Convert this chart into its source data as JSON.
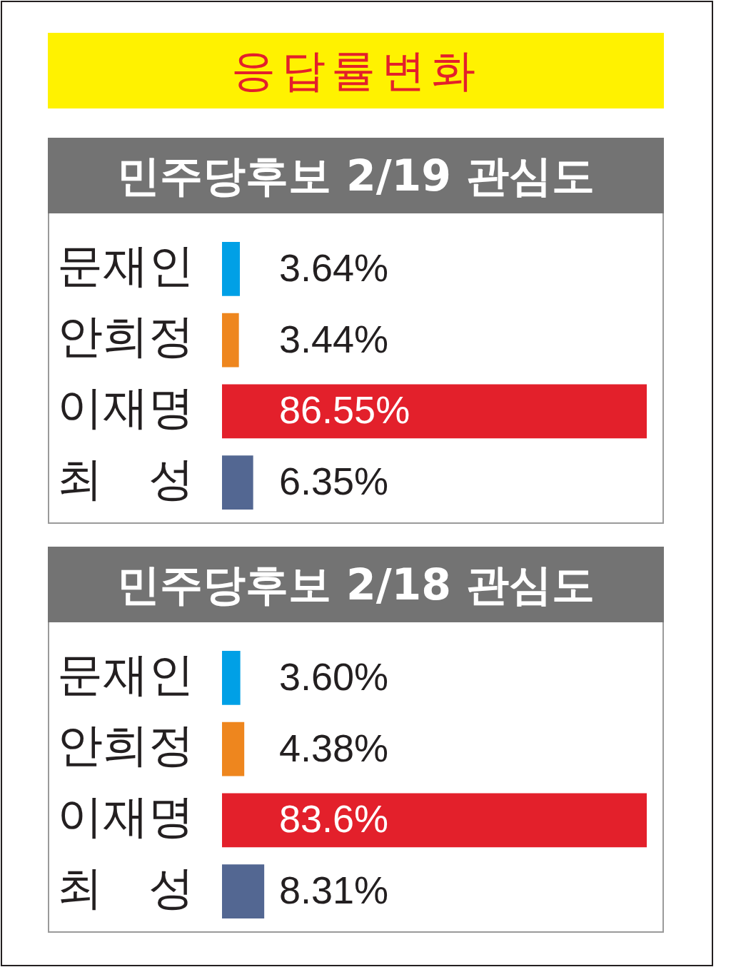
{
  "chart_data": [
    {
      "type": "other",
      "title": "응답률변화"
    },
    {
      "type": "bar",
      "orientation": "horizontal",
      "title": "민주당후보 2/19 관심도",
      "categories": [
        "문재인",
        "안희정",
        "이재명",
        "최　성"
      ],
      "values": [
        3.64,
        3.44,
        86.55,
        6.35
      ],
      "colors": [
        "#00a0e6",
        "#ee861e",
        "#e3202b",
        "#536792"
      ],
      "value_labels": [
        "3.64%",
        "3.44%",
        "86.55%",
        "6.35%"
      ],
      "tick_labels": "y"
    },
    {
      "type": "bar",
      "orientation": "horizontal",
      "title": "민주당후보 2/18 관심도",
      "categories": [
        "문재인",
        "안희정",
        "이재명",
        "최　성"
      ],
      "values": [
        3.6,
        4.38,
        83.6,
        8.31
      ],
      "colors": [
        "#00a0e6",
        "#ee861e",
        "#e3202b",
        "#536792"
      ],
      "value_labels": [
        "3.60%",
        "4.38%",
        "83.6%",
        "8.31%"
      ],
      "tick_labels": "y"
    }
  ]
}
